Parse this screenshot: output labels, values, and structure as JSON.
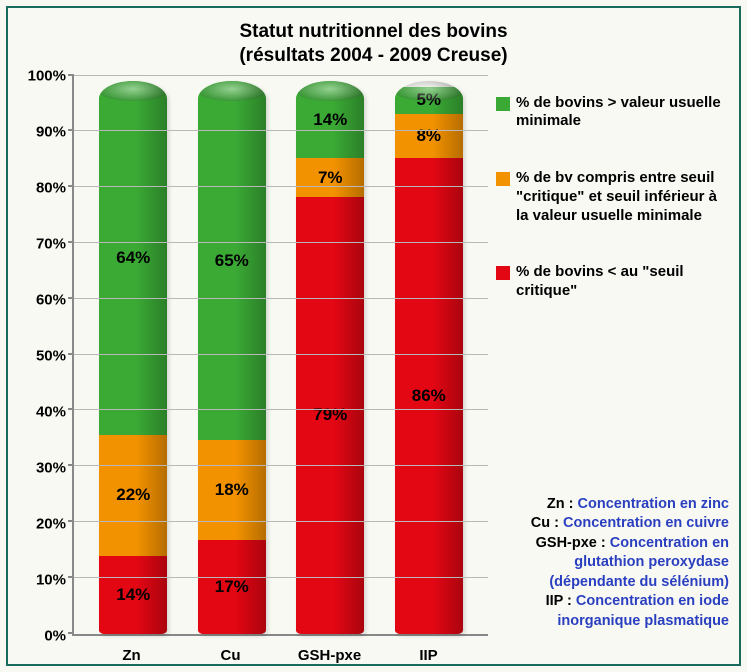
{
  "title_line1": "Statut nutritionnel des bovins",
  "title_line2": "(résultats 2004 - 2009 Creuse)",
  "chart": {
    "type": "stacked-bar",
    "ylim": [
      0,
      100
    ],
    "ytick_step": 10,
    "y_suffix": "%",
    "background_color": "#f9f9f4",
    "grid_color": "#b8b8b8",
    "categories": [
      "Zn",
      "Cu",
      "GSH-pxe",
      "IIP"
    ],
    "segments_order": [
      "critical",
      "between",
      "above"
    ],
    "colors": {
      "critical": "#e30613",
      "between": "#f39200",
      "above": "#3aaa35"
    },
    "data": [
      {
        "critical": 14,
        "between": 22,
        "above": 64
      },
      {
        "critical": 17,
        "between": 18,
        "above": 65
      },
      {
        "critical": 79,
        "between": 7,
        "above": 14
      },
      {
        "critical": 86,
        "between": 8,
        "above": 5
      }
    ],
    "label_fontsize": 17,
    "axis_fontsize": 15
  },
  "legend": {
    "above": {
      "color": "#3aaa35",
      "text": "% de bovins > valeur usuelle minimale"
    },
    "between": {
      "color": "#f39200",
      "text": "% de bv compris entre seuil \"critique\" et seuil inférieur à la valeur usuelle minimale"
    },
    "critical": {
      "color": "#e30613",
      "text": "% de bovins < au \"seuil critique\""
    }
  },
  "definitions": [
    {
      "term": "Zn : ",
      "desc": "Concentration en zinc"
    },
    {
      "term": "Cu : ",
      "desc": "Concentration en cuivre"
    },
    {
      "term": "GSH-pxe : ",
      "desc": "Concentration en glutathion peroxydase (dépendante du sélénium)"
    },
    {
      "term": "IIP : ",
      "desc": "Concentration en iode inorganique plasmatique"
    }
  ]
}
